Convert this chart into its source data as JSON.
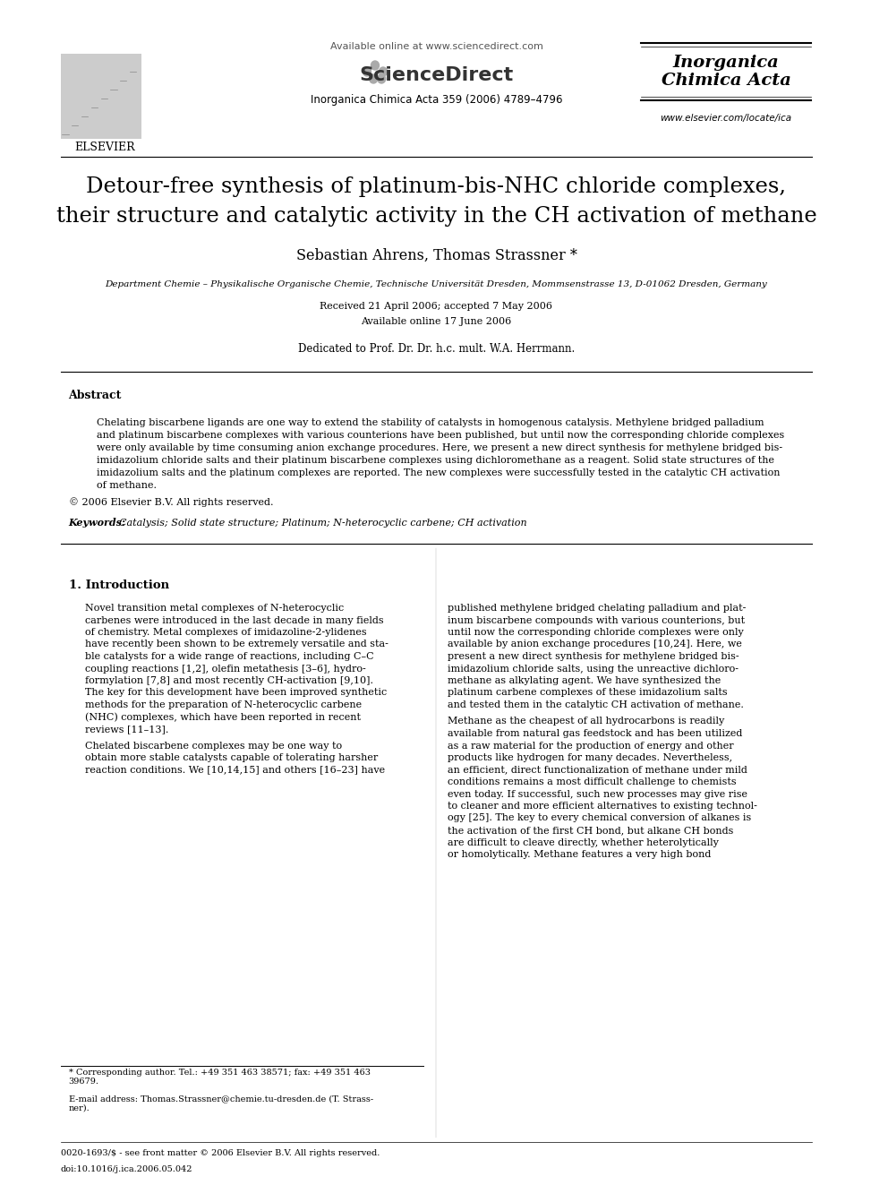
{
  "bg_color": "#ffffff",
  "title_line1": "Detour-free synthesis of platinum-bis-NHC chloride complexes,",
  "title_line2": "their structure and catalytic activity in the CH activation of methane",
  "authors": "Sebastian Ahrens, Thomas Strassner *",
  "affiliation": "Department Chemie – Physikalische Organische Chemie, Technische Universität Dresden, Mommsenstrasse 13, D-01062 Dresden, Germany",
  "received": "Received 21 April 2006; accepted 7 May 2006",
  "available": "Available online 17 June 2006",
  "dedicated": "Dedicated to Prof. Dr. Dr. h.c. mult. W.A. Herrmann.",
  "journal_header": "Inorganica Chimica Acta 359 (2006) 4789–4796",
  "available_online": "Available online at www.sciencedirect.com",
  "sciencedirect_text": "ScienceDirect",
  "journal_name_line1": "Inorganica",
  "journal_name_line2": "Chimica Acta",
  "elsevier_text": "ELSEVIER",
  "website": "www.elsevier.com/locate/ica",
  "abstract_title": "Abstract",
  "abstract_text": "Chelating biscarbene ligands are one way to extend the stability of catalysts in homogenous catalysis. Methylene bridged palladium\nand platinum biscarbene complexes with various counterions have been published, but until now the corresponding chloride complexes\nwere only available by time consuming anion exchange procedures. Here, we present a new direct synthesis for methylene bridged bis-\nimidazolium chloride salts and their platinum biscarbene complexes using dichloromethane as a reagent. Solid state structures of the\nimidazolium salts and the platinum complexes are reported. The new complexes were successfully tested in the catalytic CH activation\nof methane.",
  "copyright": "© 2006 Elsevier B.V. All rights reserved.",
  "keywords_label": "Keywords:",
  "keywords_text": "  Catalysis; Solid state structure; Platinum; N-heterocyclic carbene; CH activation",
  "section1_title": "1. Introduction",
  "section1_col1_para1": "Novel transition metal complexes of N-heterocyclic\ncarbenes were introduced in the last decade in many fields\nof chemistry. Metal complexes of imidazoline-2-ylidenes\nhave recently been shown to be extremely versatile and sta-\nble catalysts for a wide range of reactions, including C–C\ncoupling reactions [1,2], olefin metathesis [3–6], hydro-\nformylation [7,8] and most recently CH-activation [9,10].\nThe key for this development have been improved synthetic\nmethods for the preparation of N-heterocyclic carbene\n(NHC) complexes, which have been reported in recent\nreviews [11–13].",
  "section1_col1_para2": "Chelated biscarbene complexes may be one way to\nobtain more stable catalysts capable of tolerating harsher\nreaction conditions. We [10,14,15] and others [16–23] have",
  "section1_col2_para1": "published methylene bridged chelating palladium and plat-\ninum biscarbene compounds with various counterions, but\nuntil now the corresponding chloride complexes were only\navailable by anion exchange procedures [10,24]. Here, we\npresent a new direct synthesis for methylene bridged bis-\nimidazolium chloride salts, using the unreactive dichloro-\nmethane as alkylating agent. We have synthesized the\nplatinum carbene complexes of these imidazolium salts\nand tested them in the catalytic CH activation of methane.",
  "section1_col2_para2": "Methane as the cheapest of all hydrocarbons is readily\navailable from natural gas feedstock and has been utilized\nas a raw material for the production of energy and other\nproducts like hydrogen for many decades. Nevertheless,\nan efficient, direct functionalization of methane under mild\nconditions remains a most difficult challenge to chemists\neven today. If successful, such new processes may give rise\nto cleaner and more efficient alternatives to existing technol-\nogy [25]. The key to every chemical conversion of alkanes is\nthe activation of the first CH bond, but alkane CH bonds\nare difficult to cleave directly, whether heterolytically\nor homolytically. Methane features a very high bond",
  "footnote_star": "* Corresponding author. Tel.: +49 351 463 38571; fax: +49 351 463\n39679.",
  "footnote_email": "E-mail address: Thomas.Strassner@chemie.tu-dresden.de (T. Strass-\nner).",
  "footer_issn": "0020-1693/$ - see front matter © 2006 Elsevier B.V. All rights reserved.",
  "footer_doi": "doi:10.1016/j.ica.2006.05.042"
}
